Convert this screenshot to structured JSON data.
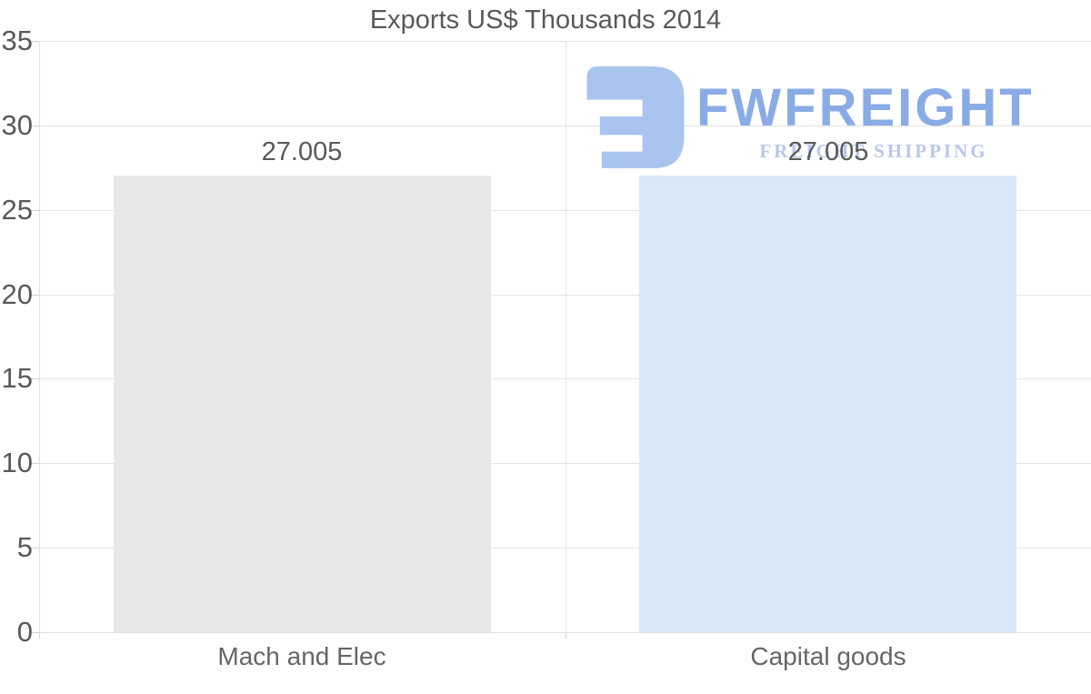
{
  "page": {
    "background": "#ffffff"
  },
  "chart_data": {
    "type": "bar",
    "title": "Exports US$ Thousands 2014",
    "categories": [
      "Mach and Elec",
      "Capital goods"
    ],
    "values": [
      27.005,
      27.005
    ],
    "value_labels": [
      "27.005",
      "27.005"
    ],
    "series_colors": [
      "#e7e8e9",
      "#d9e7f8"
    ],
    "ylim": [
      0,
      35
    ],
    "yticks": [
      0,
      5,
      10,
      15,
      20,
      25,
      30,
      35
    ],
    "grid": "horizontal",
    "legend": "none",
    "xlabel": "",
    "ylabel": ""
  },
  "watermark": {
    "brand": "FWFREIGHT",
    "tagline": "FREIGHT SHIPPING",
    "brand_color": "#8aace6",
    "tagline_color": "#b9c7ea",
    "icon_color": "#a8c4ef"
  },
  "text_colors": {
    "title": "#595959",
    "ytick_labels": "#595959",
    "value_labels": "#595959",
    "category_labels": "#666666"
  }
}
